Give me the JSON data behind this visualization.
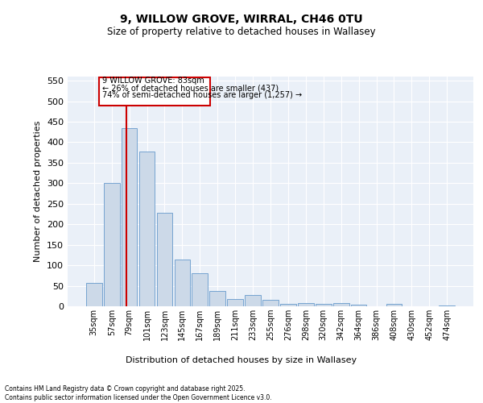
{
  "title1": "9, WILLOW GROVE, WIRRAL, CH46 0TU",
  "title2": "Size of property relative to detached houses in Wallasey",
  "xlabel": "Distribution of detached houses by size in Wallasey",
  "ylabel": "Number of detached properties",
  "categories": [
    "35sqm",
    "57sqm",
    "79sqm",
    "101sqm",
    "123sqm",
    "145sqm",
    "167sqm",
    "189sqm",
    "211sqm",
    "233sqm",
    "255sqm",
    "276sqm",
    "298sqm",
    "320sqm",
    "342sqm",
    "364sqm",
    "386sqm",
    "408sqm",
    "430sqm",
    "452sqm",
    "474sqm"
  ],
  "values": [
    57,
    300,
    435,
    378,
    228,
    113,
    80,
    38,
    18,
    27,
    15,
    5,
    8,
    6,
    8,
    4,
    0,
    5,
    0,
    0,
    2
  ],
  "bar_color": "#ccd9e8",
  "bar_edge_color": "#6699cc",
  "bg_color": "#eaf0f8",
  "grid_color": "#ffffff",
  "property_label": "9 WILLOW GROVE: 83sqm",
  "annotation_line1": "← 26% of detached houses are smaller (437)",
  "annotation_line2": "74% of semi-detached houses are larger (1,257) →",
  "vline_color": "#cc0000",
  "vline_x_index": 1.82,
  "annotation_box_color": "#cc0000",
  "ylim": [
    0,
    560
  ],
  "yticks": [
    0,
    50,
    100,
    150,
    200,
    250,
    300,
    350,
    400,
    450,
    500,
    550
  ],
  "footer1": "Contains HM Land Registry data © Crown copyright and database right 2025.",
  "footer2": "Contains public sector information licensed under the Open Government Licence v3.0."
}
